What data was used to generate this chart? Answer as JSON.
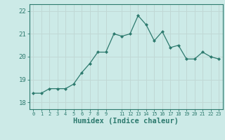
{
  "x": [
    0,
    1,
    2,
    3,
    4,
    5,
    6,
    7,
    8,
    9,
    10,
    11,
    12,
    13,
    14,
    15,
    16,
    17,
    18,
    19,
    20,
    21,
    22,
    23
  ],
  "y": [
    18.4,
    18.4,
    18.6,
    18.6,
    18.6,
    18.8,
    19.3,
    19.7,
    20.2,
    20.2,
    21.0,
    20.9,
    21.0,
    21.8,
    21.4,
    20.7,
    21.1,
    20.4,
    20.5,
    19.9,
    19.9,
    20.2,
    20.0,
    19.9
  ],
  "xlabel": "Humidex (Indice chaleur)",
  "ylim": [
    17.7,
    22.3
  ],
  "xlim": [
    -0.5,
    23.5
  ],
  "line_color": "#2d7a6e",
  "marker_color": "#2d7a6e",
  "bg_color": "#cceae7",
  "grid_color": "#c0d8d5",
  "axis_color": "#2d7a6e",
  "yticks": [
    18,
    19,
    20,
    21,
    22
  ],
  "xticks": [
    0,
    1,
    2,
    3,
    4,
    5,
    6,
    7,
    8,
    9,
    11,
    12,
    13,
    14,
    15,
    16,
    17,
    18,
    19,
    20,
    21,
    22,
    23
  ]
}
